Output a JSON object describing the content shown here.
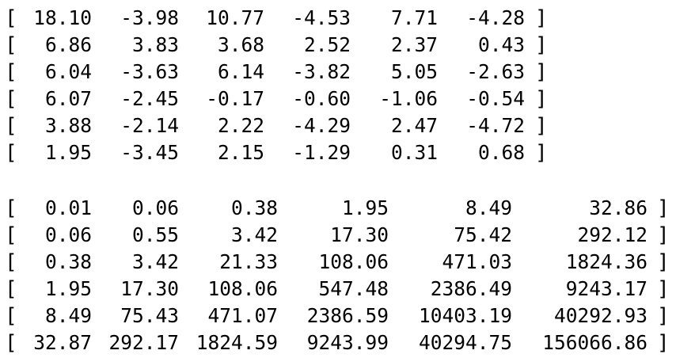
{
  "matrix_a": {
    "rows": [
      [
        "18.10",
        "-3.98",
        "10.77",
        "-4.53",
        "7.71",
        "-4.28"
      ],
      [
        "6.86",
        "3.83",
        "3.68",
        "2.52",
        "2.37",
        "0.43"
      ],
      [
        "6.04",
        "-3.63",
        "6.14",
        "-3.82",
        "5.05",
        "-2.63"
      ],
      [
        "6.07",
        "-2.45",
        "-0.17",
        "-0.60",
        "-1.06",
        "-0.54"
      ],
      [
        "3.88",
        "-2.14",
        "2.22",
        "-4.29",
        "2.47",
        "-4.72"
      ],
      [
        "1.95",
        "-3.45",
        "2.15",
        "-1.29",
        "0.31",
        "0.68"
      ]
    ]
  },
  "matrix_b": {
    "rows": [
      [
        "0.01",
        "0.06",
        "0.38",
        "1.95",
        "8.49",
        "32.86"
      ],
      [
        "0.06",
        "0.55",
        "3.42",
        "17.30",
        "75.42",
        "292.12"
      ],
      [
        "0.38",
        "3.42",
        "21.33",
        "108.06",
        "471.03",
        "1824.36"
      ],
      [
        "1.95",
        "17.30",
        "108.06",
        "547.48",
        "2386.49",
        "9243.17"
      ],
      [
        "8.49",
        "75.43",
        "471.07",
        "2386.59",
        "10403.19",
        "40292.93"
      ],
      [
        "32.87",
        "292.17",
        "1824.59",
        "9243.99",
        "40294.75",
        "156066.86"
      ]
    ]
  },
  "brackets": {
    "open": "[",
    "close": "]"
  }
}
